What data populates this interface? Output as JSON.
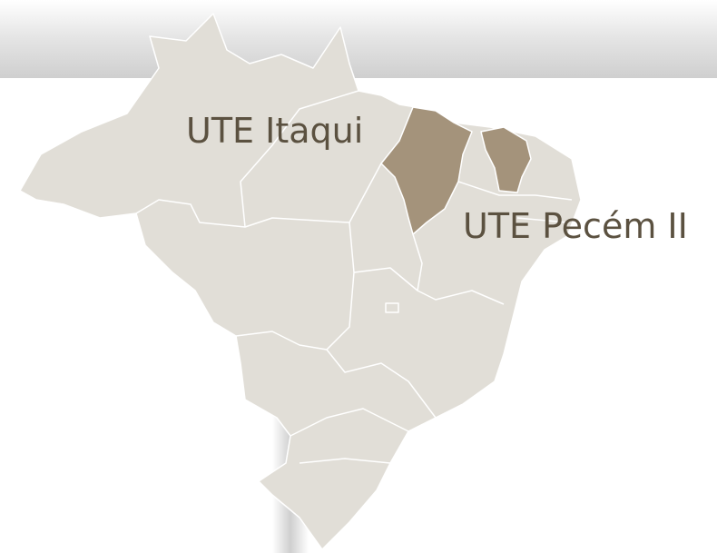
{
  "map": {
    "labels": [
      "UTE Itaqui",
      "UTE Pecém II"
    ]
  }
}
